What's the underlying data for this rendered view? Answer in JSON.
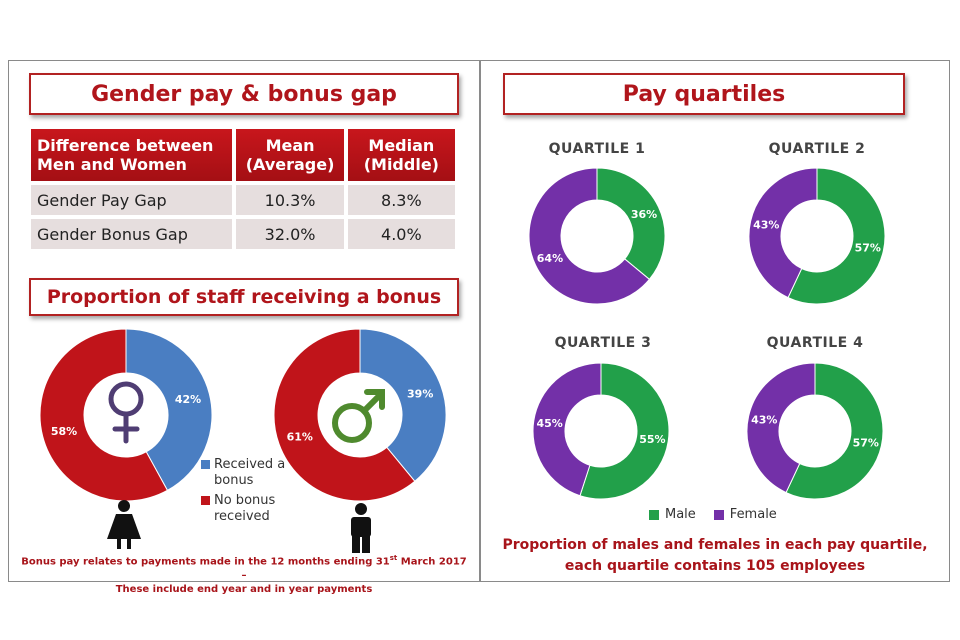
{
  "left": {
    "gap_title": "Gender pay & bonus gap",
    "table": {
      "headers": [
        "Difference between Men and Women",
        "Mean (Average)",
        "Median (Middle)"
      ],
      "rows": [
        [
          "Gender Pay Gap",
          "10.3%",
          "8.3%"
        ],
        [
          "Gender Bonus Gap",
          "32.0%",
          "4.0%"
        ]
      ]
    },
    "bonus_title": "Proportion of staff receiving a bonus",
    "legend": {
      "received": "Received a bonus",
      "no_bonus": "No bonus received"
    },
    "caption_line1": "Bonus pay relates to payments made in the 12 months ending 31st March 2017 –",
    "caption_line2": "These include end year and in year payments"
  },
  "right": {
    "title": "Pay quartiles",
    "legend": {
      "male": "Male",
      "female": "Female"
    },
    "caption_line1": "Proportion of males and females in each pay quartile,",
    "caption_line2": "each quartile contains 105 employees"
  },
  "colors": {
    "received": "#4a7ec2",
    "no_bonus": "#c0141a",
    "male": "#22a04a",
    "female": "#7330a8",
    "title_red": "#b0151b"
  },
  "icons": [
    "female-symbol-icon",
    "male-symbol-icon",
    "woman-figure-icon",
    "man-figure-icon"
  ],
  "chart_data": [
    {
      "type": "pie",
      "subtype": "donut",
      "categories": [
        "Received a bonus",
        "No bonus received"
      ],
      "values": [
        42,
        58
      ],
      "labels": [
        "42%",
        "58%"
      ]
    },
    {
      "type": "pie",
      "subtype": "donut",
      "categories": [
        "Received a bonus",
        "No bonus received"
      ],
      "values": [
        39,
        61
      ],
      "labels": [
        "39%",
        "61%"
      ]
    },
    {
      "type": "pie",
      "subtype": "donut",
      "title": "QUARTILE 1",
      "categories": [
        "Male",
        "Female"
      ],
      "values": [
        36,
        64
      ],
      "labels": [
        "36%",
        "64%"
      ]
    },
    {
      "type": "pie",
      "subtype": "donut",
      "title": "QUARTILE 2",
      "categories": [
        "Male",
        "Female"
      ],
      "values": [
        57,
        43
      ],
      "labels": [
        "57%",
        "43%"
      ]
    },
    {
      "type": "pie",
      "subtype": "donut",
      "title": "QUARTILE 3",
      "categories": [
        "Male",
        "Female"
      ],
      "values": [
        55,
        45
      ],
      "labels": [
        "55%",
        "45%"
      ]
    },
    {
      "type": "pie",
      "subtype": "donut",
      "title": "QUARTILE 4",
      "categories": [
        "Male",
        "Female"
      ],
      "values": [
        57,
        43
      ],
      "labels": [
        "57%",
        "43%"
      ]
    }
  ]
}
